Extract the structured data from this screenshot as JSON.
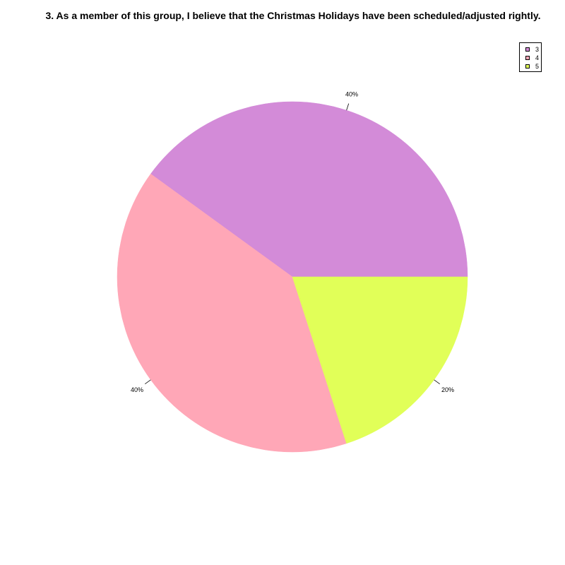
{
  "chart_data": {
    "type": "pie",
    "title": "3. As a member of this group, I believe that the Christmas Holidays have been scheduled/adjusted rightly.",
    "slices": [
      {
        "label": "3",
        "value": 40,
        "percent_label": "40%",
        "color": "#D38BD8"
      },
      {
        "label": "4",
        "value": 40,
        "percent_label": "40%",
        "color": "#FFA7B7"
      },
      {
        "label": "5",
        "value": 20,
        "percent_label": "20%",
        "color": "#E1FF58"
      }
    ],
    "legend_position": "top-right",
    "start_angle_deg": 0,
    "direction": "counterclockwise"
  }
}
